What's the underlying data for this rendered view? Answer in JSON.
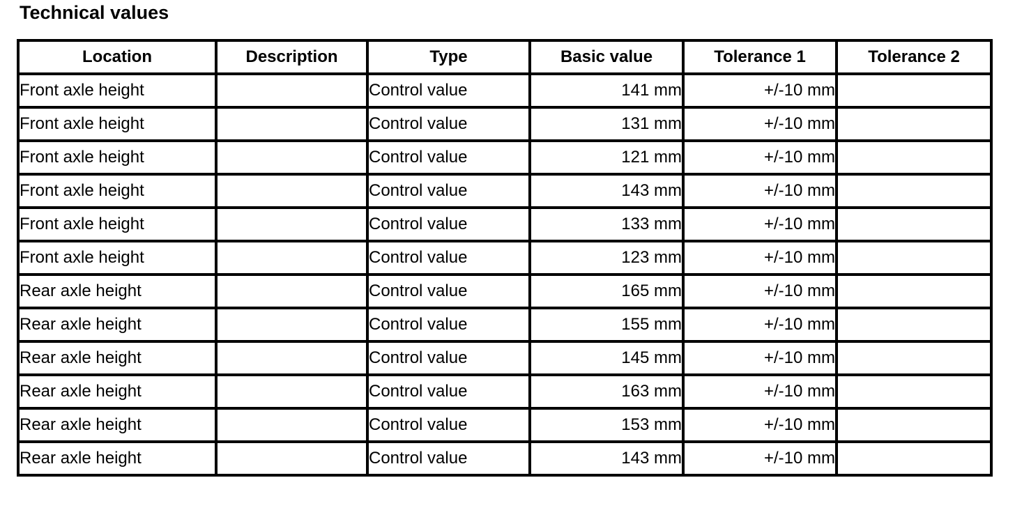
{
  "title": "Technical values",
  "table": {
    "columns": [
      {
        "key": "location",
        "label": "Location",
        "align": "left"
      },
      {
        "key": "description",
        "label": "Description",
        "align": "left"
      },
      {
        "key": "type",
        "label": "Type",
        "align": "left"
      },
      {
        "key": "basic_value",
        "label": "Basic value",
        "align": "right"
      },
      {
        "key": "tolerance_1",
        "label": "Tolerance 1",
        "align": "right"
      },
      {
        "key": "tolerance_2",
        "label": "Tolerance 2",
        "align": "left"
      }
    ],
    "rows": [
      {
        "location": "Front axle height",
        "description": "",
        "type": "Control value",
        "basic_value": "141 mm",
        "tolerance_1": "+/-10 mm",
        "tolerance_2": ""
      },
      {
        "location": "Front axle height",
        "description": "",
        "type": "Control value",
        "basic_value": "131 mm",
        "tolerance_1": "+/-10 mm",
        "tolerance_2": ""
      },
      {
        "location": "Front axle height",
        "description": "",
        "type": "Control value",
        "basic_value": "121 mm",
        "tolerance_1": "+/-10 mm",
        "tolerance_2": ""
      },
      {
        "location": "Front axle height",
        "description": "",
        "type": "Control value",
        "basic_value": "143 mm",
        "tolerance_1": "+/-10 mm",
        "tolerance_2": ""
      },
      {
        "location": "Front axle height",
        "description": "",
        "type": "Control value",
        "basic_value": "133 mm",
        "tolerance_1": "+/-10 mm",
        "tolerance_2": ""
      },
      {
        "location": "Front axle height",
        "description": "",
        "type": "Control value",
        "basic_value": "123 mm",
        "tolerance_1": "+/-10 mm",
        "tolerance_2": ""
      },
      {
        "location": "Rear axle height",
        "description": "",
        "type": "Control value",
        "basic_value": "165 mm",
        "tolerance_1": "+/-10 mm",
        "tolerance_2": ""
      },
      {
        "location": "Rear axle height",
        "description": "",
        "type": "Control value",
        "basic_value": "155 mm",
        "tolerance_1": "+/-10 mm",
        "tolerance_2": ""
      },
      {
        "location": "Rear axle height",
        "description": "",
        "type": "Control value",
        "basic_value": "145 mm",
        "tolerance_1": "+/-10 mm",
        "tolerance_2": ""
      },
      {
        "location": "Rear axle height",
        "description": "",
        "type": "Control value",
        "basic_value": "163 mm",
        "tolerance_1": "+/-10 mm",
        "tolerance_2": ""
      },
      {
        "location": "Rear axle height",
        "description": "",
        "type": "Control value",
        "basic_value": "153 mm",
        "tolerance_1": "+/-10 mm",
        "tolerance_2": ""
      },
      {
        "location": "Rear axle height",
        "description": "",
        "type": "Control value",
        "basic_value": "143 mm",
        "tolerance_1": "+/-10 mm",
        "tolerance_2": ""
      }
    ]
  }
}
